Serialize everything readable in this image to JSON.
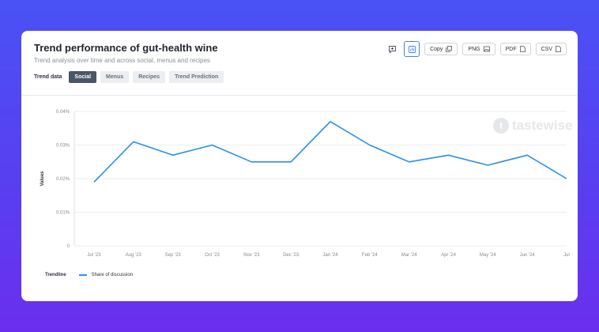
{
  "header": {
    "title": "Trend performance of gut-health wine",
    "subtitle": "Trend analysis over time and across social, menus and recipes"
  },
  "filters": {
    "label": "Trend data",
    "tabs": [
      {
        "label": "Social",
        "active": true
      },
      {
        "label": "Menus",
        "active": false
      },
      {
        "label": "Recipes",
        "active": false
      },
      {
        "label": "Trend Prediction",
        "active": false
      }
    ]
  },
  "toolbar": {
    "copy_label": "Copy",
    "png_label": "PNG",
    "pdf_label": "PDF",
    "csv_label": "CSV"
  },
  "watermark": {
    "text": "tastewise"
  },
  "legend": {
    "title": "Trendline",
    "series_label": "Share of discussion"
  },
  "colors": {
    "line": "#2b8fe8",
    "active_tab": "#4a5568",
    "accent": "#3b82f6"
  },
  "chart_data": {
    "type": "line",
    "ylabel": "Values",
    "xlabel": "",
    "categories": [
      "Jul '23",
      "Aug '23",
      "Sep '23",
      "Oct '23",
      "Nov '23",
      "Dec '23",
      "Jan '24",
      "Feb '24",
      "Mar '24",
      "Apr '24",
      "May '24",
      "Jun '24",
      "Jul"
    ],
    "series": [
      {
        "name": "Share of discussion",
        "values": [
          0.019,
          0.031,
          0.027,
          0.03,
          0.025,
          0.025,
          0.037,
          0.03,
          0.025,
          0.027,
          0.024,
          0.027,
          0.02
        ]
      }
    ],
    "ylim": [
      0,
      0.04
    ],
    "yticks": [
      0,
      0.01,
      0.02,
      0.03,
      0.04
    ],
    "ytick_labels": [
      "0",
      "0.01%",
      "0.02%",
      "0.03%",
      "0.04%"
    ],
    "grid": true
  }
}
